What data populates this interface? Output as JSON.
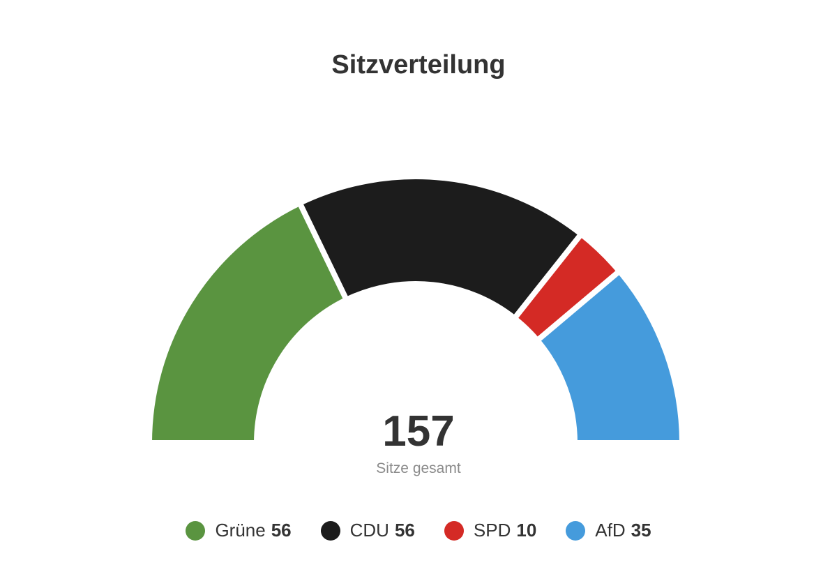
{
  "chart_data": {
    "type": "pie",
    "variant": "semicircle-donut",
    "title": "Sitzverteilung",
    "total": {
      "value": "157",
      "label": "Sitze gesamt"
    },
    "series": [
      {
        "name": "Grüne",
        "value": 56,
        "color": "#5a9440"
      },
      {
        "name": "CDU",
        "value": 56,
        "color": "#1c1c1c"
      },
      {
        "name": "SPD",
        "value": 10,
        "color": "#d42a25"
      },
      {
        "name": "AfD",
        "value": 35,
        "color": "#459bdc"
      }
    ]
  }
}
